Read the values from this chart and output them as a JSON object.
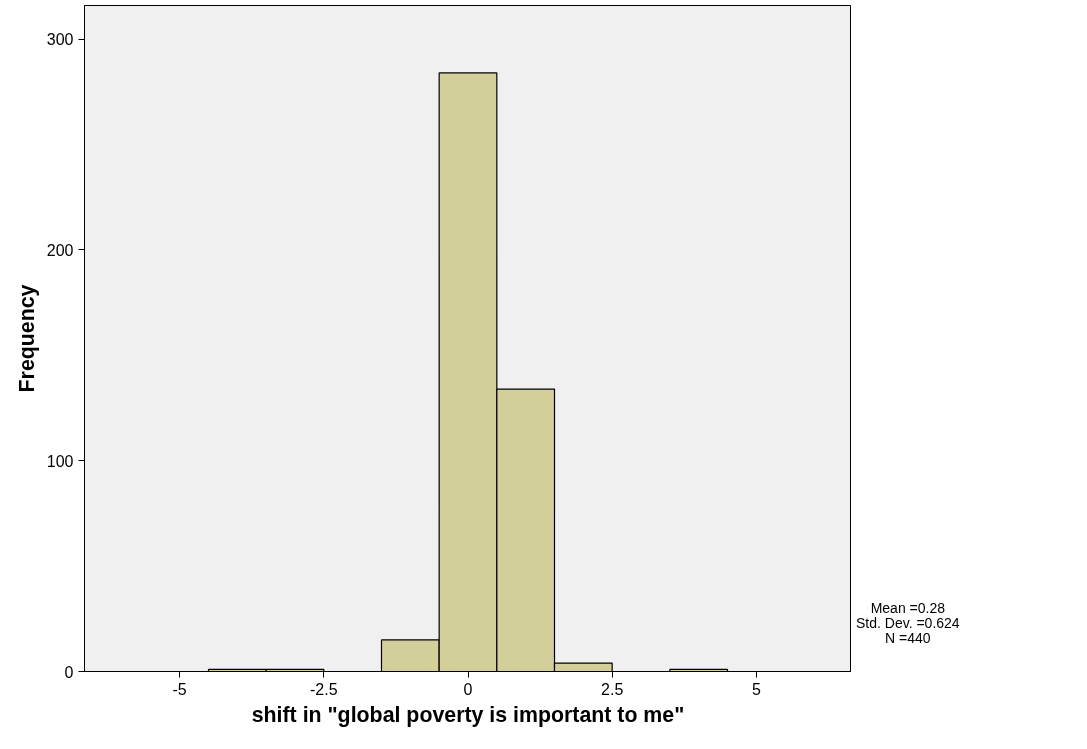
{
  "chart_data": {
    "type": "histogram",
    "xlabel": "shift in \"global poverty is important to me\"",
    "ylabel": "Frequency",
    "bins": [
      -4.5,
      -3.5,
      -2.5,
      -1.5,
      -0.5,
      0.5,
      1.5,
      2.5,
      3.5,
      4.5
    ],
    "values": [
      1,
      1,
      0,
      15,
      284,
      134,
      4,
      0,
      1
    ],
    "color": "#d3cf9a",
    "xlim": [
      -6.65,
      6.65
    ],
    "xticks": [
      -5,
      -2.5,
      0,
      2.5,
      5
    ],
    "ylim": [
      0,
      316
    ],
    "yticks": [
      0,
      100,
      200,
      300
    ],
    "grid": false,
    "annotations": [
      "Mean =0.28",
      "Std. Dev. =0.624",
      "N =440"
    ]
  }
}
